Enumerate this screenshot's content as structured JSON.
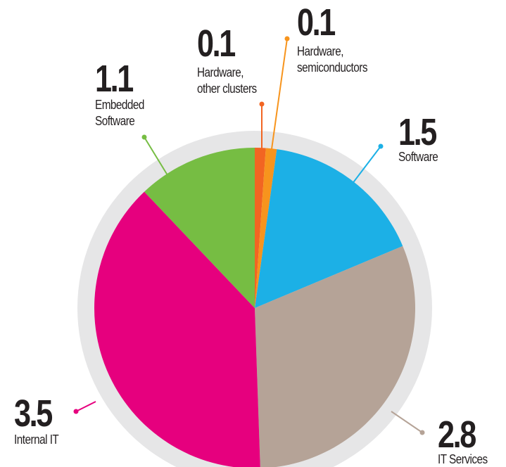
{
  "chart_data": {
    "type": "pie",
    "categories": [
      "Hardware, other clusters",
      "Hardware, semiconductors",
      "Software",
      "IT Services",
      "Internal IT",
      "Embedded Software"
    ],
    "values": [
      0.1,
      0.1,
      1.5,
      2.8,
      3.5,
      1.1
    ],
    "colors": [
      "#f26522",
      "#f7941d",
      "#1cb0e6",
      "#b5a397",
      "#e6007e",
      "#76bd43"
    ]
  }
}
